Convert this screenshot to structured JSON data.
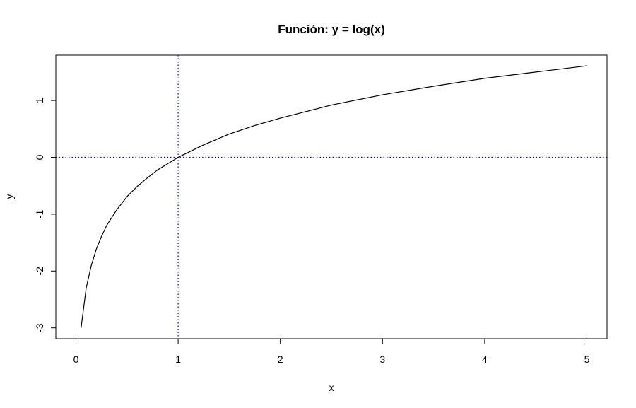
{
  "chart_data": {
    "type": "line",
    "title": "Función: y = log(x)",
    "xlabel": "x",
    "ylabel": "y",
    "xlim": [
      0,
      5
    ],
    "ylim": [
      -3,
      1.6
    ],
    "x_ticks": [
      0,
      1,
      2,
      3,
      4,
      5
    ],
    "y_ticks": [
      -3,
      -2,
      -1,
      0,
      1
    ],
    "x_tick_labels": [
      "0",
      "1",
      "2",
      "3",
      "4",
      "5"
    ],
    "y_tick_labels": [
      "-3",
      "-2",
      "-1",
      "0",
      "1"
    ],
    "series": [
      {
        "color": "#000000",
        "x": [
          0.05,
          0.1,
          0.15,
          0.2,
          0.25,
          0.3,
          0.4,
          0.5,
          0.6,
          0.7,
          0.8,
          0.9,
          1.0,
          1.25,
          1.5,
          1.75,
          2.0,
          2.5,
          3.0,
          3.5,
          4.0,
          4.5,
          5.0
        ],
        "y": [
          -3.0,
          -2.3,
          -1.9,
          -1.61,
          -1.39,
          -1.2,
          -0.92,
          -0.69,
          -0.51,
          -0.36,
          -0.22,
          -0.11,
          0.0,
          0.22,
          0.41,
          0.56,
          0.69,
          0.92,
          1.1,
          1.25,
          1.39,
          1.5,
          1.61
        ]
      }
    ],
    "reference_lines": [
      {
        "orientation": "vertical",
        "value": 1,
        "color": "#0000ff",
        "style": "dotted"
      },
      {
        "orientation": "horizontal",
        "value": 0,
        "color": "#0000ff",
        "style": "dotted"
      }
    ],
    "grid": false,
    "legend": "none"
  }
}
